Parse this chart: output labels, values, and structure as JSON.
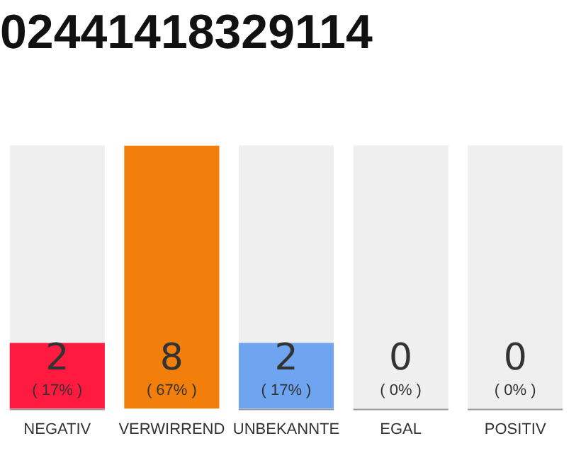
{
  "chart_data": {
    "type": "bar",
    "title": "02441418329114",
    "categories": [
      "NEGATIV",
      "VERWIRREND",
      "UNBEKANNTE",
      "EGAL",
      "POSITIV"
    ],
    "values": [
      2,
      8,
      2,
      0,
      0
    ],
    "colors": [
      "#ff1a40",
      "#f27f0c",
      "#6ea4f0",
      "#999999",
      "#999999"
    ],
    "tick_labels": "x",
    "grid": false,
    "legend": false,
    "value_labels": [
      "2",
      "8",
      "2",
      "0",
      "0"
    ],
    "bands": [
      {
        "axis": "x",
        "from": "NEGATIV",
        "to": "NEGATIV",
        "color": "#efefef"
      },
      {
        "axis": "x",
        "from": "UNBEKANNTE",
        "to": "UNBEKANNTE",
        "color": "#efefef"
      },
      {
        "axis": "x",
        "from": "EGAL",
        "to": "EGAL",
        "color": "#efefef"
      },
      {
        "axis": "x",
        "from": "POSITIV",
        "to": "POSITIV",
        "color": "#efefef"
      }
    ],
    "annotations": [
      "( 17% )",
      "( 67% )",
      "( 17% )",
      "( 0% )",
      "( 0% )"
    ]
  }
}
